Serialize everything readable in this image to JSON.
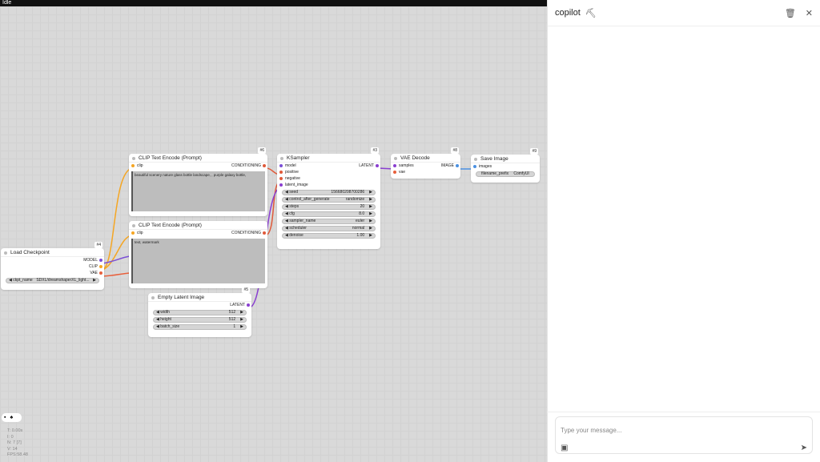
{
  "status": "Idle",
  "nodes": {
    "clip6": {
      "title": "CLIP Text Encode (Prompt)",
      "badge": "#6",
      "input": "clip",
      "output": "CONDITIONING",
      "text": "beautiful scenery nature glass bottle landscape, , purple galaxy bottle,"
    },
    "clip7": {
      "title": "CLIP Text Encode (Prompt)",
      "input": "clip",
      "output": "CONDITIONING",
      "text": "text, watermark"
    },
    "ckpt": {
      "title": "Load Checkpoint",
      "badge": "#4",
      "outputs": [
        "MODEL",
        "CLIP",
        "VAE"
      ],
      "widget": {
        "label": "ckpt_name",
        "value": "SDXL/dreamshaperXL_light..."
      }
    },
    "latent": {
      "title": "Empty Latent Image",
      "badge": "#5",
      "output": "LATENT",
      "widgets": [
        {
          "label": "width",
          "value": "512"
        },
        {
          "label": "height",
          "value": "512"
        },
        {
          "label": "batch_size",
          "value": "1"
        }
      ]
    },
    "ksampler": {
      "title": "KSampler",
      "badge": "#3",
      "inputs": [
        "model",
        "positive",
        "negative",
        "latent_image"
      ],
      "output": "LATENT",
      "widgets": [
        {
          "label": "seed",
          "value": "156680208700286"
        },
        {
          "label": "control_after_generate",
          "value": "randomize"
        },
        {
          "label": "steps",
          "value": "20"
        },
        {
          "label": "cfg",
          "value": "8.0"
        },
        {
          "label": "sampler_name",
          "value": "euler"
        },
        {
          "label": "scheduler",
          "value": "normal"
        },
        {
          "label": "denoise",
          "value": "1.00"
        }
      ]
    },
    "vae": {
      "title": "VAE Decode",
      "badge": "#8",
      "inputs": [
        "samples",
        "vae"
      ],
      "output": "IMAGE"
    },
    "save": {
      "title": "Save Image",
      "badge": "#9",
      "input": "images",
      "widget": {
        "label": "filename_prefix",
        "value": "ComfyUI"
      }
    }
  },
  "stats": [
    "T: 0.00s",
    "I: 0",
    "N: 7 [7]",
    "V: 14",
    "FPS:58.48"
  ],
  "colors": {
    "model": "#7b4fd6",
    "clip": "#f5a623",
    "vae": "#e8603c",
    "latent": "#8a3fd1",
    "image": "#4a90e2",
    "conditioning": "#e05a3a"
  },
  "panel": {
    "title": "copilot",
    "title_icon": "hammer-icon",
    "placeholder": "Type your message..."
  }
}
